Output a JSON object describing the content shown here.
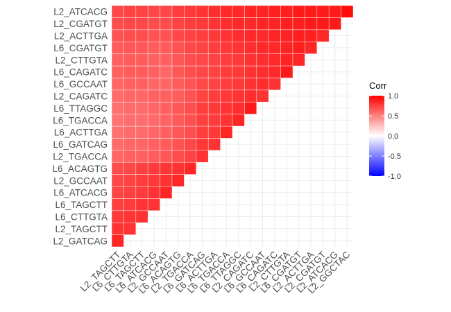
{
  "chart_data": {
    "type": "heatmap",
    "title": "",
    "xlabel": "",
    "ylabel": "",
    "y_labels": [
      "L2_GATCAG",
      "L2_TAGCTT",
      "L6_CTTGTA",
      "L6_TAGCTT",
      "L6_ATCACG",
      "L2_GCCAAT",
      "L6_ACAGTG",
      "L2_TGACCA",
      "L6_GATCAG",
      "L6_ACTTGA",
      "L6_TGACCA",
      "L6_TTAGGC",
      "L2_CAGATC",
      "L6_GCCAAT",
      "L6_CAGATC",
      "L2_CTTGTA",
      "L6_CGATGT",
      "L2_ACTTGA",
      "L2_CGATGT",
      "L2_ATCACG"
    ],
    "x_labels": [
      "L2_TAGCTT",
      "L6_CTTGTA",
      "L6_TAGCTT",
      "L6_ATCACG",
      "L2_GCCAAT",
      "L6_ACAGTG",
      "L2_TGACCA",
      "L6_GATCAG",
      "L6_ACTTGA",
      "L6_TGACCA",
      "L6_TTAGGC",
      "L2_CAGATC",
      "L6_GCCAAT",
      "L6_CAGATC",
      "L2_CTTGTA",
      "L6_CGATGT",
      "L2_ACTTGA",
      "L2_CGATGT",
      "L2_ATCACG",
      "L2_GGCTAC"
    ],
    "values": [
      [
        0.85
      ],
      [
        0.8,
        0.8
      ],
      [
        0.78,
        0.8,
        0.8
      ],
      [
        0.75,
        0.77,
        0.8,
        0.8
      ],
      [
        0.73,
        0.75,
        0.77,
        0.8,
        0.85
      ],
      [
        0.72,
        0.74,
        0.76,
        0.78,
        0.8,
        0.85
      ],
      [
        0.7,
        0.72,
        0.75,
        0.77,
        0.79,
        0.8,
        0.85
      ],
      [
        0.6,
        0.62,
        0.62,
        0.64,
        0.66,
        0.7,
        0.74,
        0.8
      ],
      [
        0.58,
        0.6,
        0.6,
        0.62,
        0.64,
        0.68,
        0.72,
        0.78,
        0.8
      ],
      [
        0.56,
        0.58,
        0.58,
        0.6,
        0.62,
        0.66,
        0.7,
        0.76,
        0.78,
        0.85
      ],
      [
        0.55,
        0.57,
        0.57,
        0.59,
        0.61,
        0.65,
        0.69,
        0.75,
        0.77,
        0.8,
        0.85
      ],
      [
        0.56,
        0.58,
        0.58,
        0.6,
        0.62,
        0.66,
        0.7,
        0.76,
        0.78,
        0.8,
        0.82,
        0.9
      ],
      [
        0.58,
        0.6,
        0.6,
        0.62,
        0.62,
        0.64,
        0.68,
        0.74,
        0.76,
        0.78,
        0.8,
        0.82,
        0.8
      ],
      [
        0.6,
        0.62,
        0.62,
        0.6,
        0.6,
        0.64,
        0.68,
        0.72,
        0.74,
        0.76,
        0.78,
        0.8,
        0.82,
        0.8
      ],
      [
        0.62,
        0.64,
        0.64,
        0.62,
        0.6,
        0.66,
        0.7,
        0.72,
        0.74,
        0.76,
        0.78,
        0.8,
        0.82,
        0.84,
        0.9
      ],
      [
        0.62,
        0.64,
        0.64,
        0.62,
        0.62,
        0.66,
        0.7,
        0.72,
        0.74,
        0.76,
        0.78,
        0.8,
        0.82,
        0.84,
        0.86,
        0.85
      ],
      [
        0.64,
        0.66,
        0.66,
        0.64,
        0.64,
        0.68,
        0.72,
        0.74,
        0.76,
        0.78,
        0.8,
        0.82,
        0.84,
        0.84,
        0.86,
        0.88,
        0.85
      ],
      [
        0.68,
        0.7,
        0.7,
        0.68,
        0.68,
        0.72,
        0.74,
        0.76,
        0.78,
        0.8,
        0.82,
        0.84,
        0.84,
        0.86,
        0.86,
        0.88,
        0.88,
        0.85
      ],
      [
        0.7,
        0.72,
        0.72,
        0.7,
        0.7,
        0.74,
        0.76,
        0.78,
        0.8,
        0.82,
        0.84,
        0.84,
        0.86,
        0.86,
        0.88,
        0.88,
        0.9,
        0.9,
        0.9
      ],
      [
        0.72,
        0.74,
        0.74,
        0.72,
        0.72,
        0.76,
        0.78,
        0.8,
        0.82,
        0.84,
        0.84,
        0.86,
        0.86,
        0.88,
        0.88,
        0.9,
        0.9,
        0.9,
        0.9,
        0.95
      ]
    ],
    "legend": {
      "title": "Corr",
      "ticks": [
        "1.0",
        "0.5",
        "0.0",
        "-0.5",
        "-1.0"
      ],
      "tick_values": [
        1,
        0.5,
        0,
        -0.5,
        -1
      ],
      "low_color": "#0000ff",
      "mid_color": "#ffffff",
      "high_color": "#ff0000",
      "range": [
        -1,
        1
      ],
      "placement": "right"
    },
    "grid": true
  }
}
